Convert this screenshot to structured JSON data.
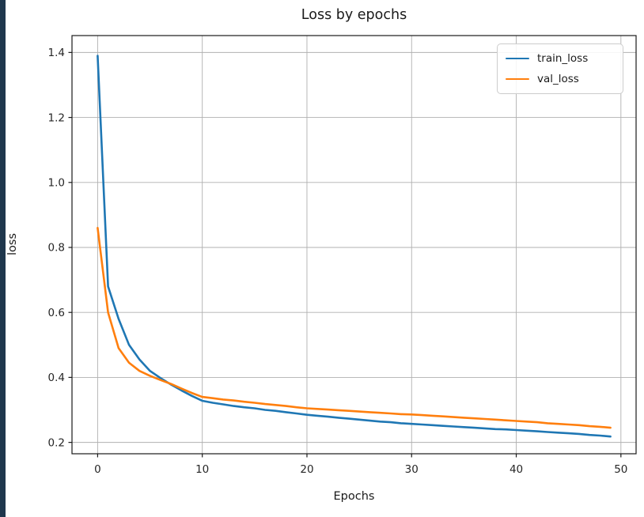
{
  "page": {
    "background": "#ffffff",
    "accent_bar_color": "#1f374d"
  },
  "chart_data": {
    "type": "line",
    "title": "Loss by epochs",
    "xlabel": "Epochs",
    "ylabel": "loss",
    "grid": true,
    "legend_position": "upper right",
    "xlim": [
      -2.45,
      51.45
    ],
    "ylim": [
      0.165,
      1.452
    ],
    "x_ticks": [
      0,
      10,
      20,
      30,
      40,
      50
    ],
    "y_ticks": [
      0.2,
      0.4,
      0.6,
      0.8,
      1.0,
      1.2,
      1.4
    ],
    "colors": {
      "grid": "#b0b0b0",
      "spine": "#1a1a1a",
      "text": "#262626"
    },
    "x": [
      0,
      1,
      2,
      3,
      4,
      5,
      6,
      7,
      8,
      9,
      10,
      11,
      12,
      13,
      14,
      15,
      16,
      17,
      18,
      19,
      20,
      21,
      22,
      23,
      24,
      25,
      26,
      27,
      28,
      29,
      30,
      31,
      32,
      33,
      34,
      35,
      36,
      37,
      38,
      39,
      40,
      41,
      42,
      43,
      44,
      45,
      46,
      47,
      48,
      49
    ],
    "series": [
      {
        "name": "train_loss",
        "color": "#1f77b4",
        "values": [
          1.39,
          0.68,
          0.58,
          0.5,
          0.455,
          0.42,
          0.398,
          0.378,
          0.36,
          0.343,
          0.328,
          0.322,
          0.317,
          0.312,
          0.308,
          0.305,
          0.3,
          0.297,
          0.293,
          0.289,
          0.285,
          0.282,
          0.279,
          0.276,
          0.273,
          0.27,
          0.267,
          0.264,
          0.262,
          0.259,
          0.257,
          0.255,
          0.253,
          0.251,
          0.249,
          0.247,
          0.245,
          0.243,
          0.241,
          0.24,
          0.238,
          0.236,
          0.234,
          0.232,
          0.23,
          0.228,
          0.226,
          0.223,
          0.221,
          0.218
        ]
      },
      {
        "name": "val_loss",
        "color": "#ff7f0e",
        "values": [
          0.86,
          0.6,
          0.49,
          0.445,
          0.42,
          0.405,
          0.392,
          0.38,
          0.366,
          0.352,
          0.34,
          0.336,
          0.332,
          0.329,
          0.325,
          0.322,
          0.318,
          0.315,
          0.312,
          0.308,
          0.305,
          0.303,
          0.301,
          0.299,
          0.297,
          0.295,
          0.293,
          0.291,
          0.289,
          0.287,
          0.286,
          0.284,
          0.282,
          0.28,
          0.278,
          0.276,
          0.274,
          0.272,
          0.27,
          0.268,
          0.266,
          0.264,
          0.262,
          0.259,
          0.257,
          0.255,
          0.253,
          0.25,
          0.248,
          0.245
        ]
      }
    ]
  }
}
